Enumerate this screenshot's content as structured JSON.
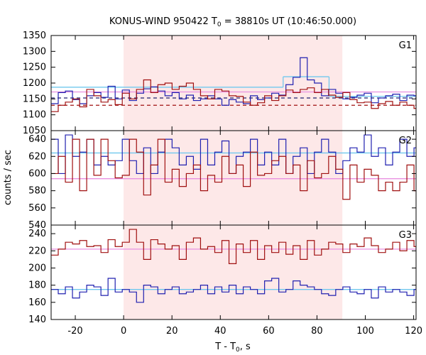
{
  "chart_data": {
    "type": "line",
    "title": {
      "prefix": "KONUS-WIND 950422 T",
      "sub": "0",
      "suffix": " = 38810s UT (10:46:50.000)"
    },
    "xlabel": {
      "prefix": "T - T",
      "sub": "0",
      "suffix": ", s"
    },
    "ylabel": "counts / sec",
    "xlim": [
      -30,
      121
    ],
    "x_ticks": [
      -20,
      0,
      20,
      40,
      60,
      80,
      100,
      120
    ],
    "shaded_region": {
      "x": [
        0,
        90.5
      ],
      "color": "#fde8e8"
    },
    "colors": {
      "red": "#a01010",
      "blue": "#2020b0",
      "light_blue": "#70c8ee",
      "pink": "#e890e0",
      "dash_red": "#a01010",
      "dash_navy": "#202070"
    },
    "bin_width": 2.944,
    "panels": [
      {
        "label": "G1",
        "ylim": [
          1050,
          1350
        ],
        "y_ticks": [
          1050,
          1100,
          1150,
          1200,
          1250,
          1300,
          1350
        ],
        "series": [
          {
            "color_key": "blue",
            "x_start": -30.0,
            "values": [
              1135,
              1170,
              1175,
              1148,
              1135,
              1160,
              1170,
              1155,
              1190,
              1150,
              1178,
              1145,
              1168,
              1182,
              1188,
              1175,
              1160,
              1170,
              1150,
              1162,
              1145,
              1150,
              1160,
              1150,
              1130,
              1148,
              1140,
              1135,
              1160,
              1148,
              1153,
              1168,
              1162,
              1195,
              1218,
              1280,
              1210,
              1200,
              1160,
              1180,
              1168,
              1150,
              1155,
              1162,
              1168,
              1138,
              1153,
              1160,
              1165,
              1145,
              1162,
              1160,
              1150
            ]
          },
          {
            "color_key": "red",
            "x_start": -30.0,
            "values": [
              1110,
              1130,
              1140,
              1150,
              1125,
              1180,
              1160,
              1140,
              1148,
              1132,
              1168,
              1150,
              1180,
              1210,
              1170,
              1195,
              1200,
              1180,
              1190,
              1200,
              1180,
              1160,
              1150,
              1180,
              1175,
              1160,
              1158,
              1140,
              1130,
              1138,
              1160,
              1145,
              1160,
              1178,
              1170,
              1180,
              1185,
              1170,
              1180,
              1162,
              1155,
              1170,
              1148,
              1138,
              1140,
              1120,
              1135,
              1142,
              1130,
              1140,
              1130,
              1120,
              1135
            ]
          }
        ],
        "fit_lines": [
          {
            "color_key": "light_blue",
            "segments": [
              {
                "x": [
                  -30,
                  66
                ],
                "y": 1187
              },
              {
                "x": [
                  66,
                  85
                ],
                "y": 1220
              },
              {
                "x": [
                  85,
                  121
                ],
                "y": 1158
              }
            ]
          },
          {
            "color_key": "pink",
            "segments": [
              {
                "x": [
                  -30,
                  121
                ],
                "y": 1172
              }
            ]
          }
        ],
        "dashed_lines": [
          {
            "color_key": "dash_navy",
            "y": 1153
          },
          {
            "color_key": "dash_red",
            "y": 1130
          }
        ]
      },
      {
        "label": "G2",
        "ylim": [
          540,
          650
        ],
        "y_ticks": [
          540,
          560,
          580,
          600,
          620,
          640
        ],
        "series": [
          {
            "color_key": "blue",
            "x_start": -30.0,
            "values": [
              640,
              600,
              645,
              620,
              625,
              640,
              610,
              620,
              610,
              615,
              640,
              615,
              600,
              630,
              600,
              625,
              640,
              630,
              610,
              620,
              605,
              640,
              610,
              625,
              638,
              600,
              620,
              625,
              640,
              610,
              625,
              610,
              640,
              600,
              620,
              630,
              600,
              625,
              640,
              625,
              600,
              615,
              630,
              625,
              645,
              620,
              630,
              610,
              625,
              640,
              620,
              630,
              645
            ]
          },
          {
            "color_key": "red",
            "x_start": -30.0,
            "values": [
              600,
              620,
              590,
              640,
              580,
              640,
              598,
              640,
              615,
              595,
              598,
              640,
              625,
              575,
              610,
              640,
              590,
              605,
              585,
              600,
              610,
              580,
              598,
              590,
              620,
              600,
              610,
              585,
              625,
              598,
              600,
              615,
              620,
              600,
              610,
              580,
              615,
              595,
              600,
              620,
              605,
              570,
              610,
              590,
              605,
              598,
              580,
              590,
              580,
              590,
              610,
              580,
              615
            ]
          }
        ],
        "fit_lines": [
          {
            "color_key": "light_blue",
            "segments": [
              {
                "x": [
                  -30,
                  121
                ],
                "y": 624
              }
            ]
          },
          {
            "color_key": "pink",
            "segments": [
              {
                "x": [
                  -30,
                  121
                ],
                "y": 594
              }
            ]
          }
        ],
        "dashed_lines": []
      },
      {
        "label": "G3",
        "ylim": [
          140,
          250
        ],
        "y_ticks": [
          140,
          160,
          180,
          200,
          220,
          240
        ],
        "series": [
          {
            "color_key": "red",
            "x_start": -30.0,
            "values": [
              215,
              222,
              230,
              228,
              232,
              225,
              226,
              218,
              233,
              225,
              230,
              245,
              230,
              210,
              233,
              228,
              222,
              226,
              210,
              230,
              235,
              222,
              225,
              218,
              232,
              205,
              228,
              218,
              232,
              210,
              226,
              218,
              230,
              216,
              226,
              210,
              232,
              215,
              222,
              230,
              228,
              218,
              228,
              225,
              235,
              226,
              218,
              222,
              230,
              220,
              232,
              225,
              240
            ]
          },
          {
            "color_key": "blue",
            "x_start": -30.0,
            "values": [
              175,
              170,
              178,
              165,
              172,
              180,
              178,
              168,
              188,
              172,
              175,
              172,
              160,
              180,
              178,
              170,
              175,
              178,
              170,
              172,
              175,
              180,
              170,
              178,
              172,
              180,
              170,
              178,
              175,
              170,
              185,
              188,
              172,
              175,
              185,
              180,
              178,
              175,
              170,
              168,
              175,
              178,
              172,
              170,
              175,
              165,
              178,
              172,
              175,
              172,
              168,
              175,
              178
            ]
          }
        ],
        "fit_lines": [
          {
            "color_key": "pink",
            "segments": [
              {
                "x": [
                  -30,
                  121
                ],
                "y": 222
              }
            ]
          },
          {
            "color_key": "light_blue",
            "segments": [
              {
                "x": [
                  -30,
                  121
                ],
                "y": 175
              }
            ]
          }
        ],
        "dashed_lines": []
      }
    ]
  }
}
